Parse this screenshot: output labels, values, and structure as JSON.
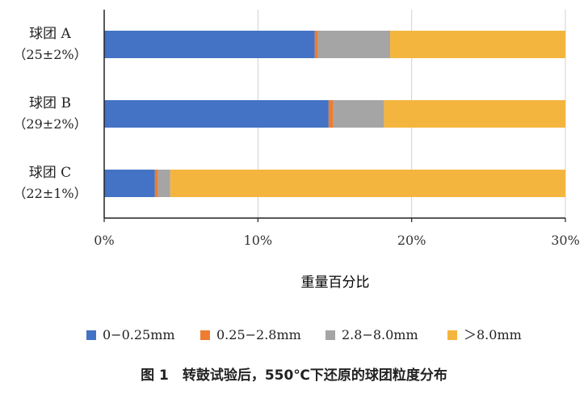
{
  "chart_data": {
    "type": "bar",
    "orientation": "horizontal",
    "stacked": true,
    "categories": [
      {
        "name": "球团 A",
        "sub": "（25±2%）"
      },
      {
        "name": "球团 B",
        "sub": "（29±2%）"
      },
      {
        "name": "球团 C",
        "sub": "（22±1%）"
      }
    ],
    "series": [
      {
        "name": "0−0.25mm",
        "color": "#4472C4",
        "values": [
          13.7,
          14.6,
          3.3
        ]
      },
      {
        "name": "0.25−2.8mm",
        "color": "#ED7D31",
        "values": [
          0.2,
          0.3,
          0.2
        ]
      },
      {
        "name": "2.8−8.0mm",
        "color": "#A5A5A5",
        "values": [
          4.7,
          3.3,
          0.8
        ]
      },
      {
        "name": "＞8.0mm",
        "color": "#F4B183",
        "values": [
          11.4,
          11.8,
          25.7
        ]
      }
    ],
    "xlim": [
      0,
      30
    ],
    "xticks": [
      "0%",
      "10%",
      "20%",
      "30%"
    ],
    "xlabel": "重量百分比",
    "legend_position": "bottom",
    "grid": true
  },
  "caption": "图 1　转鼓试验后，550℃下还原的球团粒度分布"
}
